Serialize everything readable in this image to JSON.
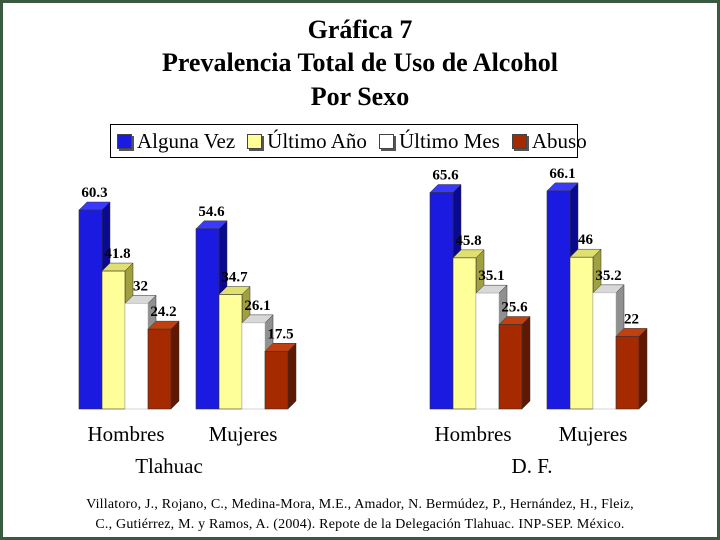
{
  "header": {
    "line1": "Gráfica 7",
    "line2": "Prevalencia Total de Uso de Alcohol",
    "line3": "Por Sexo"
  },
  "colors": {
    "alguna_vez": "#1a1ae0",
    "ultimo_anio": "#ffff99",
    "ultimo_mes": "#ffffff",
    "abuso": "#a52a00"
  },
  "chart_data": {
    "type": "bar",
    "title": "Gráfica 7 Prevalencia Total de Uso de Alcohol Por Sexo",
    "legend_position": "top",
    "grid": false,
    "ylim": [
      0,
      70
    ],
    "regions": [
      "Tlahuac",
      "D. F."
    ],
    "categories": [
      "Hombres",
      "Mujeres",
      "Hombres",
      "Mujeres"
    ],
    "series": [
      {
        "name": "Alguna Vez",
        "values": [
          60.3,
          54.6,
          65.6,
          66.1
        ]
      },
      {
        "name": "Último Año",
        "values": [
          41.8,
          34.7,
          45.8,
          46
        ]
      },
      {
        "name": "Último Mes",
        "values": [
          32,
          26.1,
          35.1,
          35.2
        ]
      },
      {
        "name": "Abuso",
        "values": [
          24.2,
          17.5,
          25.6,
          22
        ]
      }
    ]
  },
  "source": {
    "line1": "Villatoro, J., Rojano, C., Medina-Mora, M.E., Amador, N. Bermúdez, P., Hernández, H., Fleiz,",
    "line2": "C., Gutiérrez, M. y Ramos, A. (2004). Repote de la Delegación Tlahuac. INP-SEP. México."
  }
}
